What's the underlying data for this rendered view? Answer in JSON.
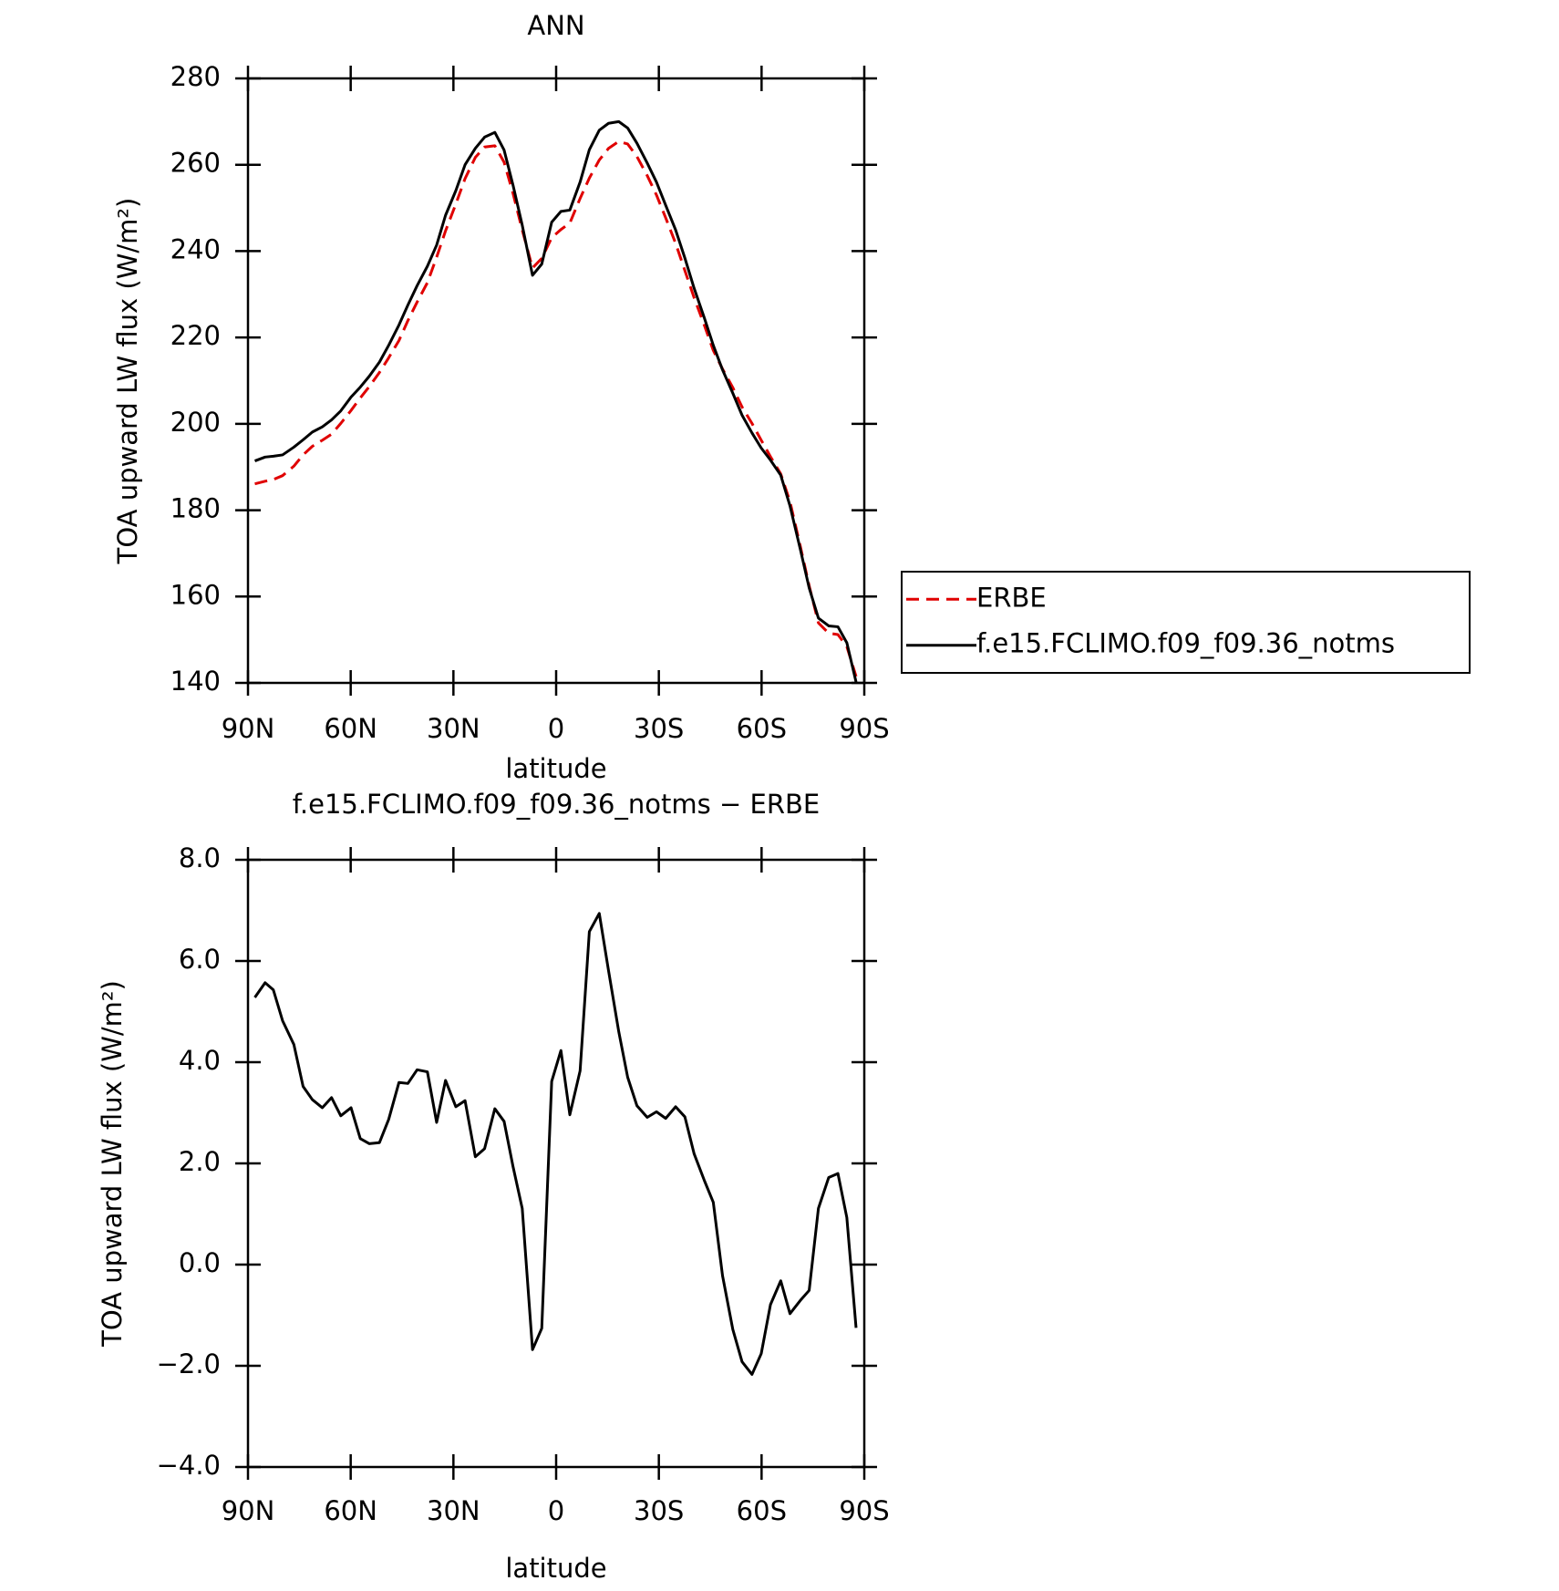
{
  "chart_data": [
    {
      "type": "line",
      "title": "ANN",
      "xlabel": "latitude",
      "ylabel": "TOA upward LW flux (W/m²)",
      "x": [
        88,
        85,
        82.6,
        79.9,
        76.6,
        73.9,
        71.2,
        68.3,
        65.6,
        62.9,
        59.9,
        57.2,
        54.6,
        51.6,
        48.9,
        45.9,
        43.3,
        40.6,
        37.6,
        34.9,
        32.3,
        29.3,
        26.6,
        23.6,
        20.9,
        17.9,
        15.2,
        12.6,
        9.9,
        6.9,
        4.2,
        1.3,
        -1.4,
        -4.0,
        -7.0,
        -9.7,
        -12.6,
        -15.3,
        -18.3,
        -20.9,
        -23.6,
        -26.6,
        -29.3,
        -32.0,
        -34.9,
        -37.6,
        -40.3,
        -43.3,
        -45.9,
        -48.6,
        -51.6,
        -54.3,
        -57.2,
        -59.9,
        -62.6,
        -65.6,
        -68.3,
        -71.3,
        -73.9,
        -76.6,
        -79.6,
        -82.3,
        -84.9,
        -87.6
      ],
      "series": [
        {
          "name": "ERBE",
          "color": "#e00000",
          "style": "dashed",
          "values": [
            186.1,
            186.7,
            187.1,
            188.0,
            190.2,
            192.8,
            194.8,
            196.2,
            197.6,
            200.1,
            203.1,
            206.0,
            208.6,
            211.9,
            215.3,
            219.3,
            223.9,
            228.2,
            232.7,
            238.6,
            244.7,
            250.9,
            256.8,
            261.7,
            264.1,
            264.4,
            260.6,
            253.4,
            244.9,
            236.1,
            238.3,
            243.1,
            245.0,
            246.5,
            252.2,
            256.9,
            261.1,
            263.8,
            265.4,
            264.8,
            261.9,
            257.5,
            253.0,
            247.7,
            241.8,
            235.5,
            229.2,
            222.8,
            217.0,
            212.7,
            208.4,
            203.9,
            200.1,
            196.2,
            192.4,
            188.4,
            182.0,
            171.7,
            162.5,
            153.9,
            151.5,
            151.2,
            148.4,
            141.5
          ]
        },
        {
          "name": "f.e15.FCLIMO.f09_f09.36_notms",
          "color": "#000000",
          "style": "solid",
          "values": [
            191.4,
            192.3,
            192.5,
            192.8,
            194.6,
            196.3,
            198.1,
            199.3,
            200.9,
            203.0,
            206.2,
            208.5,
            211.0,
            214.3,
            218.2,
            222.9,
            227.5,
            232.0,
            236.5,
            241.4,
            248.3,
            254.0,
            260.0,
            263.8,
            266.4,
            267.5,
            263.4,
            255.3,
            246.0,
            234.4,
            237.0,
            246.7,
            249.2,
            249.5,
            256.0,
            263.5,
            268.0,
            269.6,
            270.0,
            268.5,
            265.0,
            260.4,
            256.0,
            250.6,
            244.9,
            238.4,
            231.4,
            224.5,
            218.2,
            212.5,
            207.1,
            202.0,
            197.9,
            194.4,
            191.6,
            188.1,
            181.0,
            171.0,
            162.0,
            155.0,
            153.2,
            153.0,
            149.3,
            140.2
          ]
        }
      ],
      "xlim": [
        90,
        -90
      ],
      "xticks": [
        {
          "value": 90,
          "label": "90N"
        },
        {
          "value": 60,
          "label": "60N"
        },
        {
          "value": 30,
          "label": "30N"
        },
        0,
        {
          "value": -30,
          "label": "30S"
        },
        {
          "value": -60,
          "label": "60S"
        },
        {
          "value": -90,
          "label": "90S"
        }
      ],
      "ylim": [
        140,
        280
      ],
      "yticks": [
        140,
        160,
        180,
        200,
        220,
        240,
        260,
        280
      ],
      "legend": "right"
    },
    {
      "type": "line",
      "title": "f.e15.FCLIMO.f09_f09.36_notms − ERBE",
      "xlabel": "latitude",
      "ylabel": "TOA upward LW flux (W/m²)",
      "x": [
        88,
        85,
        82.6,
        79.9,
        76.6,
        73.9,
        71.2,
        68.3,
        65.6,
        62.9,
        59.9,
        57.2,
        54.6,
        51.6,
        48.9,
        45.9,
        43.3,
        40.6,
        37.6,
        34.9,
        32.3,
        29.3,
        26.6,
        23.6,
        20.9,
        17.9,
        15.2,
        12.6,
        9.9,
        6.9,
        4.2,
        1.3,
        -1.4,
        -4.0,
        -7.0,
        -9.7,
        -12.6,
        -15.3,
        -18.3,
        -20.9,
        -23.6,
        -26.6,
        -29.3,
        -32.0,
        -34.9,
        -37.6,
        -40.3,
        -43.3,
        -45.9,
        -48.6,
        -51.6,
        -54.3,
        -57.2,
        -59.9,
        -62.6,
        -65.6,
        -68.3,
        -71.3,
        -73.9,
        -76.6,
        -79.6,
        -82.3,
        -84.9,
        -87.6
      ],
      "series": [
        {
          "color": "#000000",
          "style": "solid",
          "values": [
            5.28,
            5.57,
            5.43,
            4.82,
            4.35,
            3.52,
            3.26,
            3.1,
            3.3,
            2.94,
            3.1,
            2.49,
            2.39,
            2.41,
            2.87,
            3.6,
            3.58,
            3.85,
            3.81,
            2.81,
            3.64,
            3.12,
            3.24,
            2.13,
            2.29,
            3.08,
            2.83,
            1.94,
            1.11,
            -1.68,
            -1.26,
            3.62,
            4.23,
            2.96,
            3.83,
            6.58,
            6.94,
            5.81,
            4.6,
            3.7,
            3.14,
            2.91,
            3.02,
            2.89,
            3.12,
            2.92,
            2.19,
            1.66,
            1.23,
            -0.22,
            -1.28,
            -1.92,
            -2.17,
            -1.76,
            -0.79,
            -0.32,
            -0.97,
            -0.71,
            -0.51,
            1.11,
            1.72,
            1.8,
            0.93,
            -1.25
          ]
        }
      ],
      "xlim": [
        90,
        -90
      ],
      "xticks": [
        {
          "value": 90,
          "label": "90N"
        },
        {
          "value": 60,
          "label": "60N"
        },
        {
          "value": 30,
          "label": "30N"
        },
        0,
        {
          "value": -30,
          "label": "30S"
        },
        {
          "value": -60,
          "label": "60S"
        },
        {
          "value": -90,
          "label": "90S"
        }
      ],
      "ylim": [
        -4,
        8
      ],
      "yticks": [
        {
          "value": -4,
          "label": "−4.0"
        },
        {
          "value": -2,
          "label": "−2.0"
        },
        {
          "value": 0,
          "label": "0.0"
        },
        {
          "value": 2,
          "label": "2.0"
        },
        {
          "value": 4,
          "label": "4.0"
        },
        {
          "value": 6,
          "label": "6.0"
        },
        {
          "value": 8,
          "label": "8.0"
        }
      ]
    }
  ]
}
